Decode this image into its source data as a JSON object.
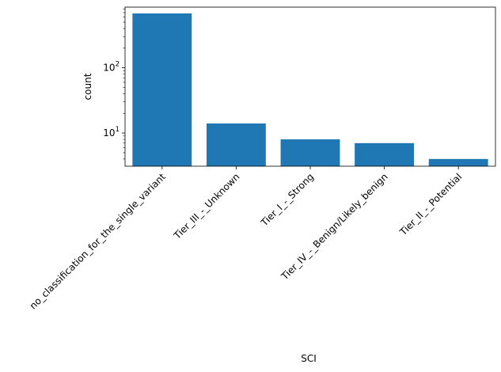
{
  "chart_data": {
    "type": "bar",
    "title": "",
    "xlabel": "SCI",
    "ylabel": "count",
    "yscale": "log",
    "ylim": [
      3.1,
      850
    ],
    "categories": [
      "no_classification_for_the_single_variant",
      "Tier_III_-_Unknown",
      "Tier_I_-_Strong",
      "Tier_IV_-_Benign/Likely_benign",
      "Tier_II_-_Potential"
    ],
    "values": [
      680,
      14,
      8,
      7,
      4
    ],
    "y_ticks": [
      {
        "value": 10,
        "base": "10",
        "exp": "1"
      },
      {
        "value": 100,
        "base": "10",
        "exp": "2"
      }
    ],
    "bar_color": "#1f77b4",
    "grid": false,
    "legend": "none"
  }
}
